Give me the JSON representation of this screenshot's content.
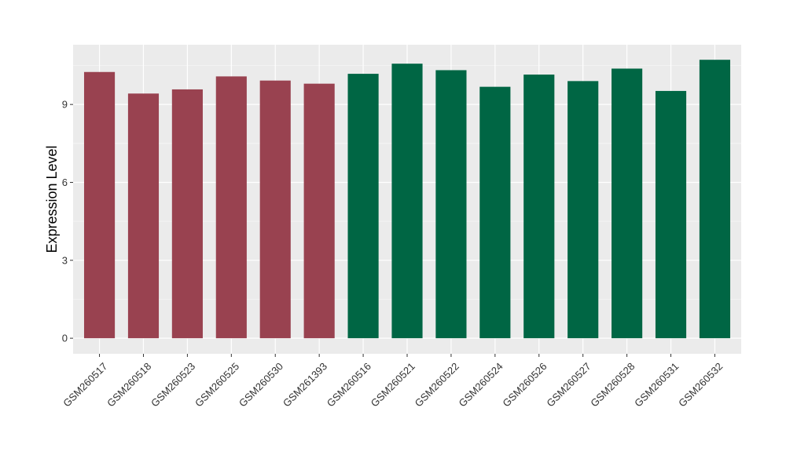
{
  "chart_data": {
    "type": "bar",
    "title": "",
    "xlabel": "",
    "ylabel": "Expression Level",
    "ylim": [
      -0.6,
      11.3
    ],
    "yticks": [
      0,
      3,
      6,
      9
    ],
    "grid": true,
    "legend": "none",
    "background_color": "#EBEBEB",
    "categories": [
      "GSM260517",
      "GSM260518",
      "GSM260523",
      "GSM260525",
      "GSM260530",
      "GSM261393",
      "GSM260516",
      "GSM260521",
      "GSM260522",
      "GSM260524",
      "GSM260526",
      "GSM260527",
      "GSM260528",
      "GSM260531",
      "GSM260532"
    ],
    "values": [
      10.25,
      9.42,
      9.58,
      10.08,
      9.92,
      9.8,
      10.18,
      10.57,
      10.32,
      9.68,
      10.15,
      9.9,
      10.38,
      9.52,
      10.72
    ],
    "bar_colors": [
      "#994250",
      "#994250",
      "#994250",
      "#994250",
      "#994250",
      "#994250",
      "#006644",
      "#006644",
      "#006644",
      "#006644",
      "#006644",
      "#006644",
      "#006644",
      "#006644",
      "#006644"
    ]
  }
}
